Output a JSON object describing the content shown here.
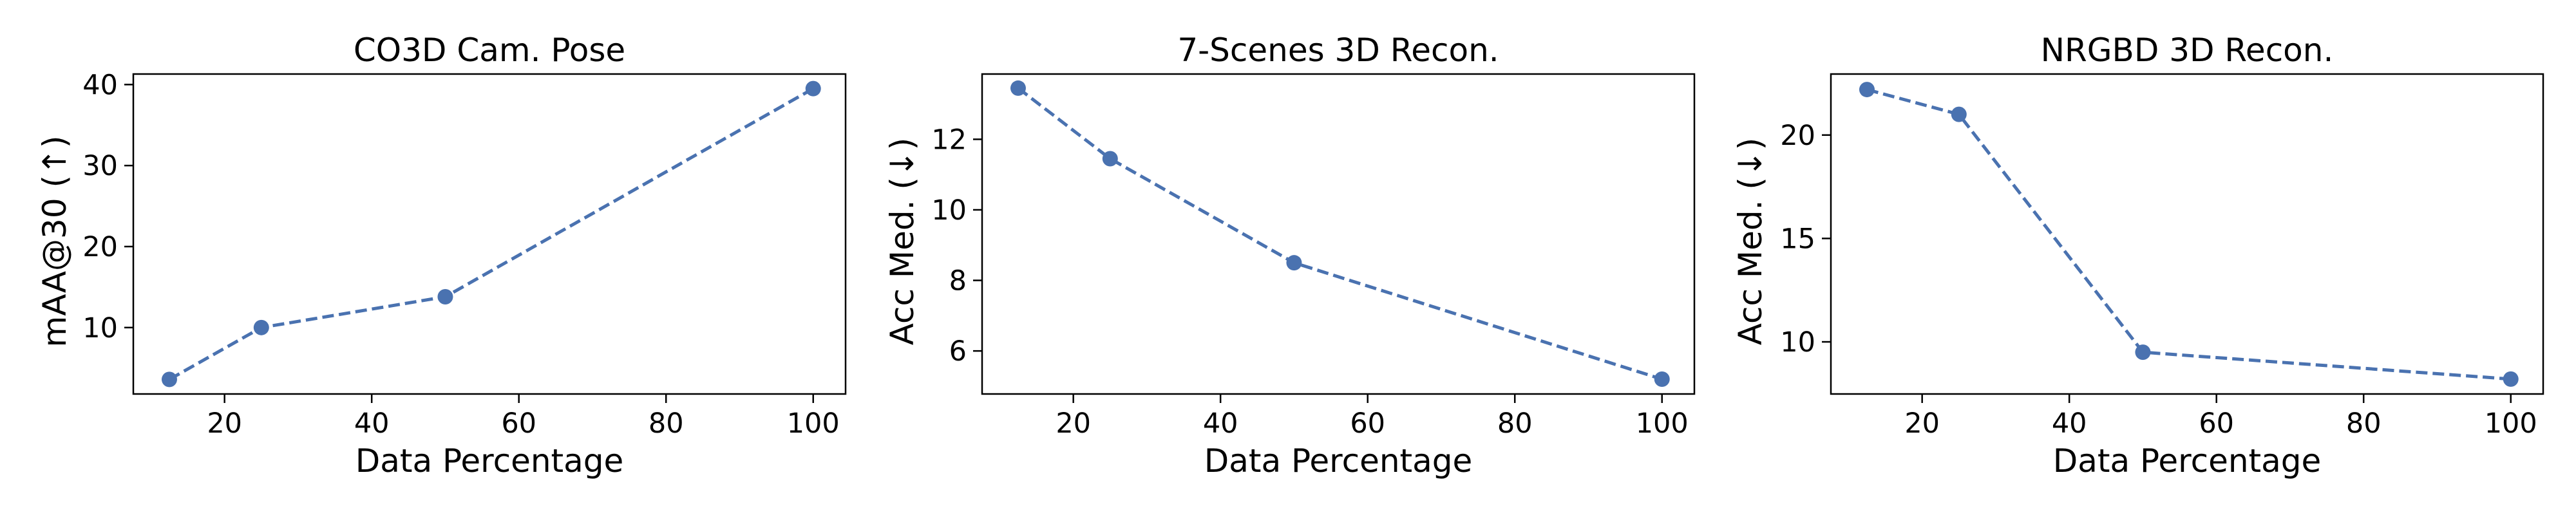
{
  "figure": {
    "line_color": "#4a72b0",
    "marker_color": "#4a72b0"
  },
  "chart_data": [
    {
      "type": "line",
      "title": "CO3D Cam. Pose",
      "xlabel": "Data Percentage",
      "ylabel": "mAA@30 (↑)",
      "xlim": [
        7.6,
        104.4
      ],
      "ylim": [
        1.8,
        41.3
      ],
      "xticks": [
        20,
        40,
        60,
        80,
        100
      ],
      "yticks": [
        10,
        20,
        30,
        40
      ],
      "grid": false,
      "line_style": "dashed",
      "marker": "circle",
      "series": [
        {
          "x": [
            12.5,
            25,
            50,
            100
          ],
          "y": [
            3.6,
            10.0,
            13.8,
            39.5
          ]
        }
      ]
    },
    {
      "type": "line",
      "title": "7-Scenes 3D Recon.",
      "xlabel": "Data Percentage",
      "ylabel": "Acc Med. (↓)",
      "xlim": [
        7.6,
        104.4
      ],
      "ylim": [
        4.78,
        13.85
      ],
      "xticks": [
        20,
        40,
        60,
        80,
        100
      ],
      "yticks": [
        6,
        8,
        10,
        12
      ],
      "grid": false,
      "line_style": "dashed",
      "marker": "circle",
      "series": [
        {
          "x": [
            12.5,
            25,
            50,
            100
          ],
          "y": [
            13.45,
            11.45,
            8.5,
            5.2
          ]
        }
      ]
    },
    {
      "type": "line",
      "title": "NRGBD 3D Recon.",
      "xlabel": "Data Percentage",
      "ylabel": "Acc Med. (↓)",
      "xlim": [
        7.6,
        104.4
      ],
      "ylim": [
        7.48,
        22.95
      ],
      "xticks": [
        20,
        40,
        60,
        80,
        100
      ],
      "yticks": [
        10,
        15,
        20
      ],
      "grid": false,
      "line_style": "dashed",
      "marker": "circle",
      "series": [
        {
          "x": [
            12.5,
            25,
            50,
            100
          ],
          "y": [
            22.2,
            21.0,
            9.5,
            8.2
          ]
        }
      ]
    }
  ]
}
